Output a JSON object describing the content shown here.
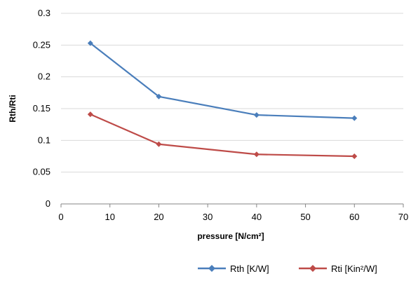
{
  "chart_data": {
    "type": "line",
    "title": "",
    "xlabel": "pressure [N/cm²]",
    "ylabel": "Rth/Rti",
    "xlim": [
      0,
      70
    ],
    "ylim": [
      0,
      0.3
    ],
    "x_ticks": [
      "0",
      "10",
      "20",
      "30",
      "40",
      "50",
      "60",
      "70"
    ],
    "y_ticks": [
      "0",
      "0.05",
      "0.1",
      "0.15",
      "0.2",
      "0.25",
      "0.3"
    ],
    "grid": "horizontal",
    "legend_position": "bottom-right",
    "series": [
      {
        "name": "Rth [K/W]",
        "color": "#4a7ebb",
        "marker": "diamond",
        "x": [
          6,
          20,
          40,
          60
        ],
        "y": [
          0.253,
          0.169,
          0.14,
          0.135
        ]
      },
      {
        "name": "Rti [Kin²/W]",
        "color": "#be4b48",
        "marker": "diamond",
        "x": [
          6,
          20,
          40,
          60
        ],
        "y": [
          0.141,
          0.094,
          0.078,
          0.075
        ]
      }
    ]
  }
}
